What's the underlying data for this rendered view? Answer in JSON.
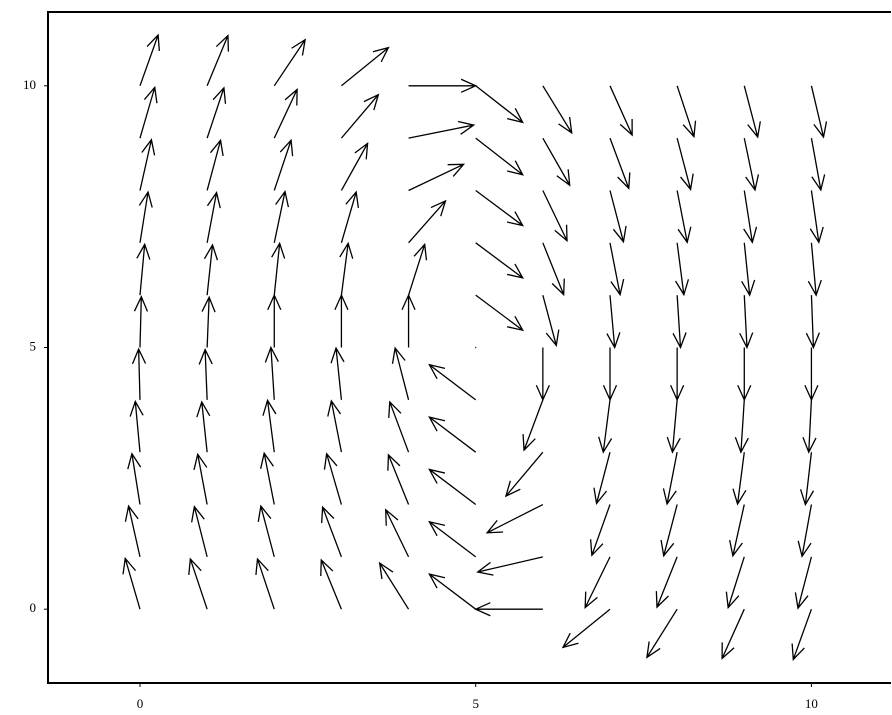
{
  "chart_data": {
    "type": "quiver",
    "xlim": [
      -1.37,
      11.2
    ],
    "ylim": [
      -1.41,
      11.41
    ],
    "xticks": [
      0,
      5,
      10
    ],
    "yticks": [
      0,
      5,
      10
    ],
    "color": "#000000",
    "x": [
      0,
      0,
      0,
      0,
      0,
      0,
      0,
      0,
      0,
      0,
      0,
      1,
      1,
      1,
      1,
      1,
      1,
      1,
      1,
      1,
      1,
      1,
      2,
      2,
      2,
      2,
      2,
      2,
      2,
      2,
      2,
      2,
      2,
      3,
      3,
      3,
      3,
      3,
      3,
      3,
      3,
      3,
      3,
      3,
      4,
      4,
      4,
      4,
      4,
      4,
      4,
      4,
      4,
      4,
      4,
      5,
      5,
      5,
      5,
      5,
      5,
      5,
      5,
      5,
      5,
      5,
      6,
      6,
      6,
      6,
      6,
      6,
      6,
      6,
      6,
      6,
      6,
      7,
      7,
      7,
      7,
      7,
      7,
      7,
      7,
      7,
      7,
      7,
      8,
      8,
      8,
      8,
      8,
      8,
      8,
      8,
      8,
      8,
      8,
      9,
      9,
      9,
      9,
      9,
      9,
      9,
      9,
      9,
      9,
      9,
      10,
      10,
      10,
      10,
      10,
      10,
      10,
      10,
      10,
      10,
      10
    ],
    "y": [
      0,
      1,
      2,
      3,
      4,
      5,
      6,
      7,
      8,
      9,
      10,
      0,
      1,
      2,
      3,
      4,
      5,
      6,
      7,
      8,
      9,
      10,
      0,
      1,
      2,
      3,
      4,
      5,
      6,
      7,
      8,
      9,
      10,
      0,
      1,
      2,
      3,
      4,
      5,
      6,
      7,
      8,
      9,
      10,
      0,
      1,
      2,
      3,
      4,
      5,
      6,
      7,
      8,
      9,
      10,
      0,
      1,
      2,
      3,
      4,
      5,
      6,
      7,
      8,
      9,
      10,
      0,
      1,
      2,
      3,
      4,
      5,
      6,
      7,
      8,
      9,
      10,
      0,
      1,
      2,
      3,
      4,
      5,
      6,
      7,
      8,
      9,
      10,
      0,
      1,
      2,
      3,
      4,
      5,
      6,
      7,
      8,
      9,
      10,
      0,
      1,
      2,
      3,
      4,
      5,
      6,
      7,
      8,
      9,
      10,
      0,
      1,
      2,
      3,
      4,
      5,
      6,
      7,
      8,
      9,
      10
    ],
    "u": [
      -0.22,
      -0.17,
      -0.12,
      -0.07,
      -0.02,
      0.02,
      0.07,
      0.12,
      0.17,
      0.22,
      0.27,
      -0.25,
      -0.19,
      -0.14,
      -0.08,
      -0.03,
      0.03,
      0.08,
      0.14,
      0.2,
      0.25,
      0.31,
      -0.25,
      -0.2,
      -0.15,
      -0.1,
      -0.05,
      0,
      0.08,
      0.16,
      0.25,
      0.34,
      0.46,
      -0.3,
      -0.28,
      -0.22,
      -0.15,
      -0.08,
      0,
      0.1,
      0.22,
      0.39,
      0.55,
      0.7,
      -0.43,
      -0.34,
      -0.3,
      -0.28,
      -0.2,
      0,
      0.24,
      0.55,
      0.82,
      0.97,
      1,
      -0.69,
      -0.69,
      -0.69,
      -0.69,
      -0.69,
      0,
      0.7,
      0.7,
      0.7,
      0.7,
      0.7,
      -1,
      -0.97,
      -0.83,
      -0.55,
      -0.28,
      0,
      0.2,
      0.31,
      0.36,
      0.4,
      0.43,
      -0.7,
      -0.37,
      -0.27,
      -0.2,
      -0.1,
      0,
      0.07,
      0.15,
      0.2,
      0.28,
      0.33,
      -0.45,
      -0.3,
      -0.2,
      -0.15,
      -0.07,
      0,
      0.05,
      0.1,
      0.15,
      0.2,
      0.25,
      -0.33,
      -0.24,
      -0.17,
      -0.1,
      -0.05,
      0,
      0.04,
      0.08,
      0.12,
      0.16,
      0.2,
      -0.27,
      -0.2,
      -0.14,
      -0.09,
      -0.04,
      0,
      0.03,
      0.07,
      0.11,
      0.14,
      0.18
    ],
    "v": [
      0.97,
      0.97,
      0.97,
      0.97,
      0.97,
      0.97,
      0.97,
      0.97,
      0.97,
      0.97,
      0.97,
      0.96,
      0.96,
      0.96,
      0.96,
      0.96,
      0.96,
      0.96,
      0.96,
      0.96,
      0.96,
      0.96,
      0.96,
      0.97,
      0.98,
      0.99,
      1,
      1,
      0.99,
      0.98,
      0.96,
      0.93,
      0.88,
      0.94,
      0.95,
      0.97,
      0.98,
      0.99,
      1,
      0.99,
      0.97,
      0.9,
      0.83,
      0.73,
      0.88,
      0.9,
      0.95,
      0.96,
      0.99,
      1,
      0.97,
      0.8,
      0.5,
      0.25,
      0,
      0.67,
      0.67,
      0.67,
      0.67,
      0.67,
      0,
      -0.67,
      -0.67,
      -0.67,
      -0.7,
      -0.7,
      0,
      -0.29,
      -0.54,
      -0.84,
      -0.96,
      -1,
      -0.96,
      -0.99,
      -0.96,
      -0.9,
      -0.9,
      -0.73,
      -0.97,
      -0.97,
      -0.98,
      -1,
      -1,
      -1,
      -0.99,
      -0.98,
      -0.96,
      -0.94,
      -0.92,
      -0.96,
      -0.98,
      -0.99,
      -1,
      -1,
      -1,
      -0.99,
      -0.99,
      -0.98,
      -0.97,
      -0.94,
      -0.97,
      -0.98,
      -0.99,
      -1,
      -1,
      -1,
      -1,
      -0.99,
      -0.99,
      -0.98,
      -0.96,
      -0.98,
      -0.99,
      -1,
      -1,
      -1,
      -1,
      -1,
      -0.99,
      -0.99,
      -0.98
    ]
  }
}
